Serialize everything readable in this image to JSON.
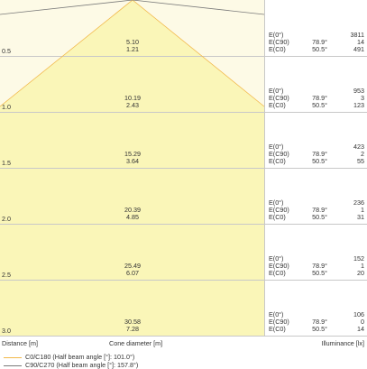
{
  "colors": {
    "light_fill": "#fdfae6",
    "cone_fill": "#faf6b8",
    "grid": "#c8c8c8",
    "c0_line": "#f2b84b",
    "c90_line": "#7a7a7a",
    "text": "#333333"
  },
  "rows": [
    {
      "distance": "0.5",
      "diameter_c0": "5.10",
      "diameter_c90": "1.21",
      "values": [
        {
          "label": "E(0°)",
          "angle": "",
          "value": "3811"
        },
        {
          "label": "E(C90)",
          "angle": "78.9°",
          "value": "14"
        },
        {
          "label": "E(C0)",
          "angle": "50.5°",
          "value": "491"
        }
      ]
    },
    {
      "distance": "1.0",
      "diameter_c0": "10.19",
      "diameter_c90": "2.43",
      "values": [
        {
          "label": "E(0°)",
          "angle": "",
          "value": "953"
        },
        {
          "label": "E(C90)",
          "angle": "78.9°",
          "value": "3"
        },
        {
          "label": "E(C0)",
          "angle": "50.5°",
          "value": "123"
        }
      ]
    },
    {
      "distance": "1.5",
      "diameter_c0": "15.29",
      "diameter_c90": "3.64",
      "values": [
        {
          "label": "E(0°)",
          "angle": "",
          "value": "423"
        },
        {
          "label": "E(C90)",
          "angle": "78.9°",
          "value": "2"
        },
        {
          "label": "E(C0)",
          "angle": "50.5°",
          "value": "55"
        }
      ]
    },
    {
      "distance": "2.0",
      "diameter_c0": "20.39",
      "diameter_c90": "4.85",
      "values": [
        {
          "label": "E(0°)",
          "angle": "",
          "value": "236"
        },
        {
          "label": "E(C90)",
          "angle": "78.9°",
          "value": "1"
        },
        {
          "label": "E(C0)",
          "angle": "50.5°",
          "value": "31"
        }
      ]
    },
    {
      "distance": "2.5",
      "diameter_c0": "25.49",
      "diameter_c90": "6.07",
      "values": [
        {
          "label": "E(0°)",
          "angle": "",
          "value": "152"
        },
        {
          "label": "E(C90)",
          "angle": "78.9°",
          "value": "1"
        },
        {
          "label": "E(C0)",
          "angle": "50.5°",
          "value": "20"
        }
      ]
    },
    {
      "distance": "3.0",
      "diameter_c0": "30.58",
      "diameter_c90": "7.28",
      "values": [
        {
          "label": "E(0°)",
          "angle": "",
          "value": "106"
        },
        {
          "label": "E(C90)",
          "angle": "78.9°",
          "value": "0"
        },
        {
          "label": "E(C0)",
          "angle": "50.5°",
          "value": "14"
        }
      ]
    }
  ],
  "footer": {
    "distance_label": "Distance [m]",
    "cone_label": "Cone diameter [m]",
    "illuminance_label": "Illuminance [lx]"
  },
  "legend": [
    {
      "name": "C0/C180 (Half beam angle [°]: 101.0°)",
      "color": "#f2b84b"
    },
    {
      "name": "C90/C270 (Half beam angle [°]: 157.8°)",
      "color": "#7a7a7a"
    }
  ]
}
